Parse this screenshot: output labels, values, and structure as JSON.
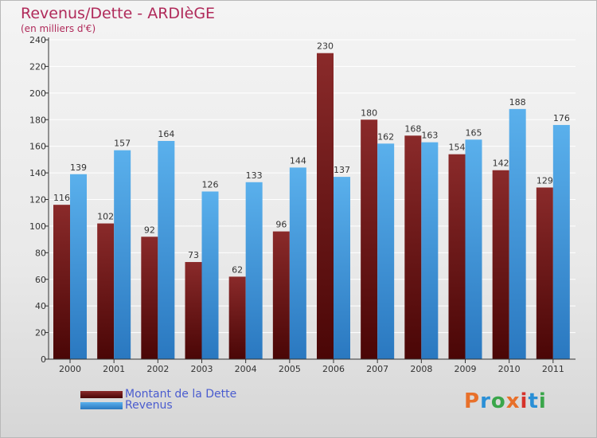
{
  "header": {
    "title": "Revenus/Dette - ARDIèGE",
    "subtitle": "(en milliers d'€)"
  },
  "legend": {
    "dette_label": "Montant de la Dette",
    "revenus_label": "Revenus"
  },
  "logo": {
    "text": "Proxiti",
    "letters": [
      "P",
      "r",
      "o",
      "x",
      "i",
      "t",
      "i"
    ],
    "letter_colors": [
      "#e8702a",
      "#2a8fd6",
      "#3aa64a",
      "#e8702a",
      "#d6322a",
      "#2a8fd6",
      "#3aa64a"
    ]
  },
  "colors": {
    "dette": "#7a1a1a",
    "revenus": "#4aa0e0",
    "title": "#b02a5a",
    "legend_text": "#4a5ccf"
  },
  "chart_data": {
    "type": "bar",
    "title": "Revenus/Dette - ARDIèGE",
    "subtitle": "(en milliers d'€)",
    "xlabel": "",
    "ylabel": "",
    "ylim": [
      0,
      240
    ],
    "yticks": [
      0,
      20,
      40,
      60,
      80,
      100,
      120,
      140,
      160,
      180,
      200,
      220,
      240
    ],
    "grid": true,
    "legend_position": "bottom-left",
    "categories": [
      "2000",
      "2001",
      "2002",
      "2003",
      "2004",
      "2005",
      "2006",
      "2007",
      "2008",
      "2009",
      "2010",
      "2011"
    ],
    "series": [
      {
        "name": "Montant de la Dette",
        "values": [
          116,
          102,
          92,
          73,
          62,
          96,
          230,
          180,
          168,
          154,
          142,
          129
        ]
      },
      {
        "name": "Revenus",
        "values": [
          139,
          157,
          164,
          126,
          133,
          144,
          137,
          162,
          163,
          165,
          188,
          176
        ]
      }
    ]
  }
}
